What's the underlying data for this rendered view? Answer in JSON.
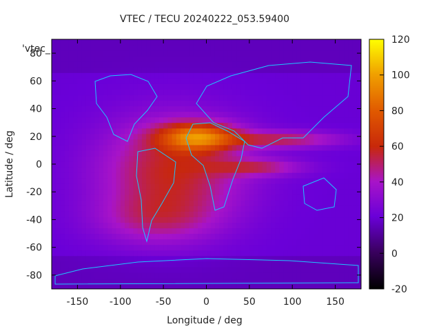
{
  "chart_data": {
    "type": "heatmap",
    "title": "VTEC / TECU 20240222_053.59400",
    "xlabel": "Longitude / deg",
    "ylabel": "Latitude / deg",
    "legend_key": "'vtec_",
    "xlim": [
      -180,
      180
    ],
    "ylim": [
      -90,
      90
    ],
    "x_ticks": [
      -150,
      -100,
      -50,
      0,
      50,
      100,
      150
    ],
    "y_ticks": [
      -80,
      -60,
      -40,
      -20,
      0,
      20,
      40,
      60,
      80
    ],
    "colorbar": {
      "min": -20,
      "max": 120,
      "ticks": [
        -20,
        0,
        20,
        40,
        60,
        80,
        100,
        120
      ]
    },
    "field_description": "Vertical total electron content on a lat/lon grid; background ~20 TECU, equatorial anomaly crests up to ~110 TECU near 20N, 10W over Africa/Atlantic, elevated band (~50-70 TECU) from 150W to 150E between 40S and 40N",
    "peak": {
      "lon": -10,
      "lat": 20,
      "value": 110
    },
    "background_value": 20
  }
}
